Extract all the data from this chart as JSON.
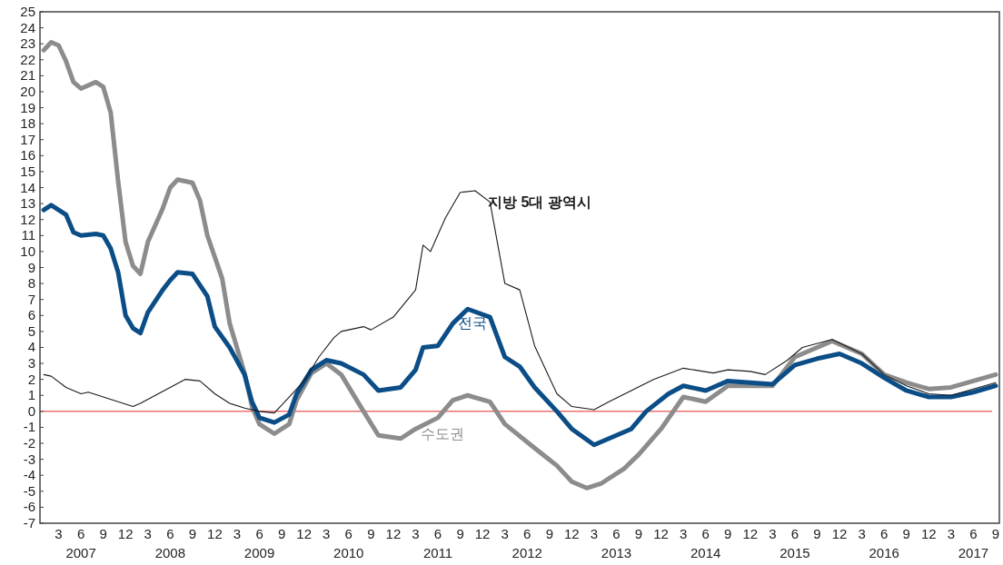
{
  "chart_data": {
    "type": "line",
    "xlim": [
      "2006-12-16",
      "2017-09-16"
    ],
    "xticks": [
      {
        "value": "2007-03",
        "label": "3"
      },
      {
        "value": "2007-06",
        "label": "6\n2007"
      },
      {
        "value": "2007-09",
        "label": "9"
      },
      {
        "value": "2007-12",
        "label": "12"
      },
      {
        "value": "2008-03",
        "label": "3"
      },
      {
        "value": "2008-06",
        "label": "6\n2008"
      },
      {
        "value": "2008-09",
        "label": "9"
      },
      {
        "value": "2008-12",
        "label": "12"
      },
      {
        "value": "2009-03",
        "label": "3"
      },
      {
        "value": "2009-06",
        "label": "6\n2009"
      },
      {
        "value": "2009-09",
        "label": "9"
      },
      {
        "value": "2009-12",
        "label": "12"
      },
      {
        "value": "2010-03",
        "label": "3"
      },
      {
        "value": "2010-06",
        "label": "6\n2010"
      },
      {
        "value": "2010-09",
        "label": "9"
      },
      {
        "value": "2010-12",
        "label": "12"
      },
      {
        "value": "2011-03",
        "label": "3"
      },
      {
        "value": "2011-06",
        "label": "6\n2011"
      },
      {
        "value": "2011-09",
        "label": "9"
      },
      {
        "value": "2011-12",
        "label": "12"
      },
      {
        "value": "2012-03",
        "label": "3"
      },
      {
        "value": "2012-06",
        "label": "6\n2012"
      },
      {
        "value": "2012-09",
        "label": "9"
      },
      {
        "value": "2012-12",
        "label": "12"
      },
      {
        "value": "2013-03",
        "label": "3"
      },
      {
        "value": "2013-06",
        "label": "6\n2013"
      },
      {
        "value": "2013-09",
        "label": "9"
      },
      {
        "value": "2013-12",
        "label": "12"
      },
      {
        "value": "2014-03",
        "label": "3"
      },
      {
        "value": "2014-06",
        "label": "6\n2014"
      },
      {
        "value": "2014-09",
        "label": "9"
      },
      {
        "value": "2014-12",
        "label": "12"
      },
      {
        "value": "2015-03",
        "label": "3"
      },
      {
        "value": "2015-06",
        "label": "6\n2015"
      },
      {
        "value": "2015-09",
        "label": "9"
      },
      {
        "value": "2015-12",
        "label": "12"
      },
      {
        "value": "2016-03",
        "label": "3"
      },
      {
        "value": "2016-06",
        "label": "6\n2016"
      },
      {
        "value": "2016-09",
        "label": "9"
      },
      {
        "value": "2016-12",
        "label": "12"
      },
      {
        "value": "2017-03",
        "label": "3"
      },
      {
        "value": "2017-06",
        "label": "6\n2017"
      },
      {
        "value": "2017-09",
        "label": "9"
      }
    ],
    "ylim": [
      -7,
      25
    ],
    "yticks": [
      -7,
      -6,
      -5,
      -4,
      -3,
      -2,
      -1,
      0,
      1,
      2,
      3,
      4,
      5,
      6,
      7,
      8,
      9,
      10,
      11,
      12,
      13,
      14,
      15,
      16,
      17,
      18,
      19,
      20,
      21,
      22,
      23,
      24,
      25
    ],
    "grid": false,
    "marker": "none",
    "line_style": "solid",
    "ref_lines": [
      {
        "axis": "y",
        "value": 0,
        "color": "#e02828"
      }
    ],
    "series": [
      {
        "name": "수도권",
        "color": "#8c8c8c",
        "x": [
          "2007-01",
          "2007-02",
          "2007-03",
          "2007-04",
          "2007-05",
          "2007-06",
          "2007-08",
          "2007-09",
          "2007-10",
          "2007-11",
          "2007-12",
          "2008-01",
          "2008-02",
          "2008-03",
          "2008-05",
          "2008-06",
          "2008-07",
          "2008-09",
          "2008-10",
          "2008-11",
          "2009-01",
          "2009-02",
          "2009-04",
          "2009-05",
          "2009-06",
          "2009-08",
          "2009-10",
          "2009-11",
          "2010-01",
          "2010-03",
          "2010-05",
          "2010-08",
          "2010-10",
          "2011-01",
          "2011-03",
          "2011-06",
          "2011-08",
          "2011-10",
          "2012-01",
          "2012-03",
          "2012-07",
          "2012-10",
          "2012-12",
          "2013-02",
          "2013-04",
          "2013-07",
          "2013-09",
          "2013-12",
          "2014-03",
          "2014-06",
          "2014-09",
          "2014-12",
          "2015-03",
          "2015-06",
          "2015-09",
          "2015-11",
          "2016-03",
          "2016-06",
          "2016-09",
          "2016-12",
          "2017-03",
          "2017-06",
          "2017-09"
        ],
        "values": [
          22.6,
          23.1,
          22.9,
          21.9,
          20.6,
          20.2,
          20.6,
          20.3,
          18.7,
          14.4,
          10.6,
          9.1,
          8.6,
          10.6,
          12.7,
          14.0,
          14.5,
          14.3,
          13.2,
          11.0,
          8.3,
          5.5,
          2.4,
          0.3,
          -0.8,
          -1.4,
          -0.8,
          0.7,
          2.4,
          3.0,
          2.3,
          0,
          -1.5,
          -1.7,
          -1.1,
          -0.4,
          0.7,
          1.0,
          0.6,
          -0.8,
          -2.3,
          -3.4,
          -4.4,
          -4.8,
          -4.5,
          -3.6,
          -2.7,
          -1.1,
          0.9,
          0.6,
          1.6,
          1.6,
          1.6,
          3.4,
          4.0,
          4.4,
          3.6,
          2.3,
          1.8,
          1.4,
          1.5,
          1.9,
          2.3
        ]
      },
      {
        "name": "전국",
        "color": "#0b4d86",
        "x": [
          "2007-01",
          "2007-02",
          "2007-04",
          "2007-05",
          "2007-06",
          "2007-08",
          "2007-09",
          "2007-10",
          "2007-11",
          "2007-12",
          "2008-01",
          "2008-02",
          "2008-03",
          "2008-05",
          "2008-06",
          "2008-07",
          "2008-09",
          "2008-11",
          "2008-12",
          "2009-02",
          "2009-04",
          "2009-05",
          "2009-06",
          "2009-08",
          "2009-10",
          "2009-11",
          "2010-01",
          "2010-03",
          "2010-05",
          "2010-08",
          "2010-10",
          "2011-01",
          "2011-03",
          "2011-04",
          "2011-06",
          "2011-08",
          "2011-10",
          "2012-01",
          "2012-03",
          "2012-05",
          "2012-07",
          "2012-10",
          "2012-12",
          "2013-03",
          "2013-05",
          "2013-08",
          "2013-10",
          "2014-01",
          "2014-03",
          "2014-06",
          "2014-09",
          "2014-12",
          "2015-03",
          "2015-06",
          "2015-09",
          "2015-12",
          "2016-03",
          "2016-06",
          "2016-09",
          "2016-12",
          "2017-03",
          "2017-06",
          "2017-09"
        ],
        "values": [
          12.6,
          12.9,
          12.3,
          11.2,
          11.0,
          11.1,
          11.0,
          10.2,
          8.7,
          6.0,
          5.2,
          4.9,
          6.2,
          7.6,
          8.2,
          8.7,
          8.6,
          7.2,
          5.3,
          4.0,
          2.3,
          0.6,
          -0.4,
          -0.7,
          -0.2,
          1.1,
          2.6,
          3.2,
          3.0,
          2.3,
          1.3,
          1.5,
          2.6,
          4.0,
          4.1,
          5.5,
          6.4,
          5.9,
          3.4,
          2.8,
          1.5,
          0,
          -1.1,
          -2.1,
          -1.7,
          -1.1,
          0,
          1.1,
          1.6,
          1.3,
          1.9,
          1.8,
          1.7,
          2.9,
          3.3,
          3.6,
          3.0,
          2.1,
          1.3,
          0.9,
          0.9,
          1.2,
          1.6
        ]
      },
      {
        "name": "지방 5대 광역시",
        "color": "#1a1a1a",
        "x": [
          "2007-01",
          "2007-02",
          "2007-04",
          "2007-06",
          "2007-07",
          "2007-09",
          "2007-11",
          "2008-01",
          "2008-02",
          "2008-04",
          "2008-06",
          "2008-08",
          "2008-10",
          "2008-12",
          "2009-02",
          "2009-04",
          "2009-06",
          "2009-08",
          "2009-10",
          "2009-12",
          "2010-02",
          "2010-04",
          "2010-05",
          "2010-08",
          "2010-09",
          "2010-12",
          "2011-03",
          "2011-04",
          "2011-05",
          "2011-07",
          "2011-09",
          "2011-11",
          "2012-01",
          "2012-03",
          "2012-05",
          "2012-07",
          "2012-10",
          "2012-12",
          "2013-03",
          "2013-05",
          "2013-08",
          "2013-11",
          "2014-03",
          "2014-07",
          "2014-09",
          "2014-12",
          "2015-02",
          "2015-05",
          "2015-07",
          "2015-11",
          "2016-03",
          "2016-06",
          "2016-09",
          "2016-12",
          "2017-03",
          "2017-06",
          "2017-09"
        ],
        "values": [
          2.3,
          2.2,
          1.5,
          1.1,
          1.2,
          0.9,
          0.6,
          0.3,
          0.5,
          1.0,
          1.5,
          2.0,
          1.9,
          1.1,
          0.5,
          0.2,
          0,
          -0.1,
          0.9,
          1.9,
          3.4,
          4.6,
          5.0,
          5.3,
          5.1,
          5.9,
          7.6,
          10.4,
          10.0,
          12.1,
          13.7,
          13.8,
          13.1,
          8.0,
          7.6,
          4.1,
          1.1,
          0.3,
          0.1,
          0.6,
          1.3,
          2.0,
          2.7,
          2.4,
          2.6,
          2.5,
          2.3,
          3.2,
          4.0,
          4.5,
          3.6,
          2.3,
          1.6,
          1.1,
          1.0,
          1.4,
          1.8
        ]
      }
    ]
  }
}
